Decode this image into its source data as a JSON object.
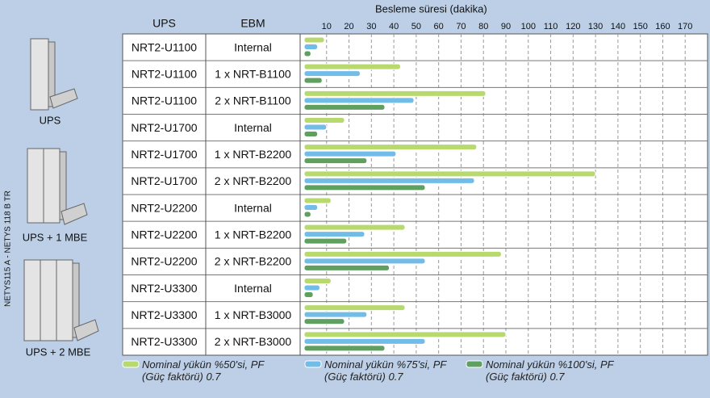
{
  "chart_data": {
    "type": "bar",
    "orientation": "horizontal",
    "title": "Besleme süresi (dakika)",
    "columns": [
      "UPS",
      "EBM"
    ],
    "rows": [
      [
        "NRT2-U1100",
        "Internal"
      ],
      [
        "NRT2-U1100",
        "1 x NRT-B1100"
      ],
      [
        "NRT2-U1100",
        "2 x NRT-B1100"
      ],
      [
        "NRT2-U1700",
        "Internal"
      ],
      [
        "NRT2-U1700",
        "1 x NRT-B2200"
      ],
      [
        "NRT2-U1700",
        "2 x NRT-B2200"
      ],
      [
        "NRT2-U2200",
        "Internal"
      ],
      [
        "NRT2-U2200",
        "1 x NRT-B2200"
      ],
      [
        "NRT2-U2200",
        "2 x NRT-B2200"
      ],
      [
        "NRT2-U3300",
        "Internal"
      ],
      [
        "NRT2-U3300",
        "1 x NRT-B3000"
      ],
      [
        "NRT2-U3300",
        "2 x NRT-B3000"
      ]
    ],
    "series": [
      {
        "name": "Nominal yükün %50'si, PF (Güç faktörü) 0.7",
        "color": "#b7d96e",
        "values": [
          9,
          43,
          81,
          18,
          77,
          130,
          12,
          45,
          88,
          12,
          45,
          90
        ]
      },
      {
        "name": "Nominal yükün %75'si, PF (Güç faktörü) 0.7",
        "color": "#72bde8",
        "values": [
          6,
          25,
          49,
          10,
          41,
          76,
          6,
          27,
          54,
          7,
          28,
          54
        ]
      },
      {
        "name": "Nominal yükün %100'si, PF (Güç faktörü) 0.7",
        "color": "#5f9f5f",
        "values": [
          3,
          8,
          36,
          6,
          28,
          54,
          3,
          19,
          38,
          4,
          18,
          36
        ]
      }
    ],
    "xlim": [
      0,
      180
    ],
    "xticks": [
      10,
      20,
      30,
      40,
      50,
      60,
      70,
      80,
      90,
      100,
      110,
      120,
      130,
      140,
      150,
      160,
      170
    ],
    "grid": true
  },
  "side_labels": [
    "UPS",
    "UPS + 1 MBE",
    "UPS + 2 MBE"
  ],
  "document_code": "NETYS115 A - NETYS 118 B TR"
}
